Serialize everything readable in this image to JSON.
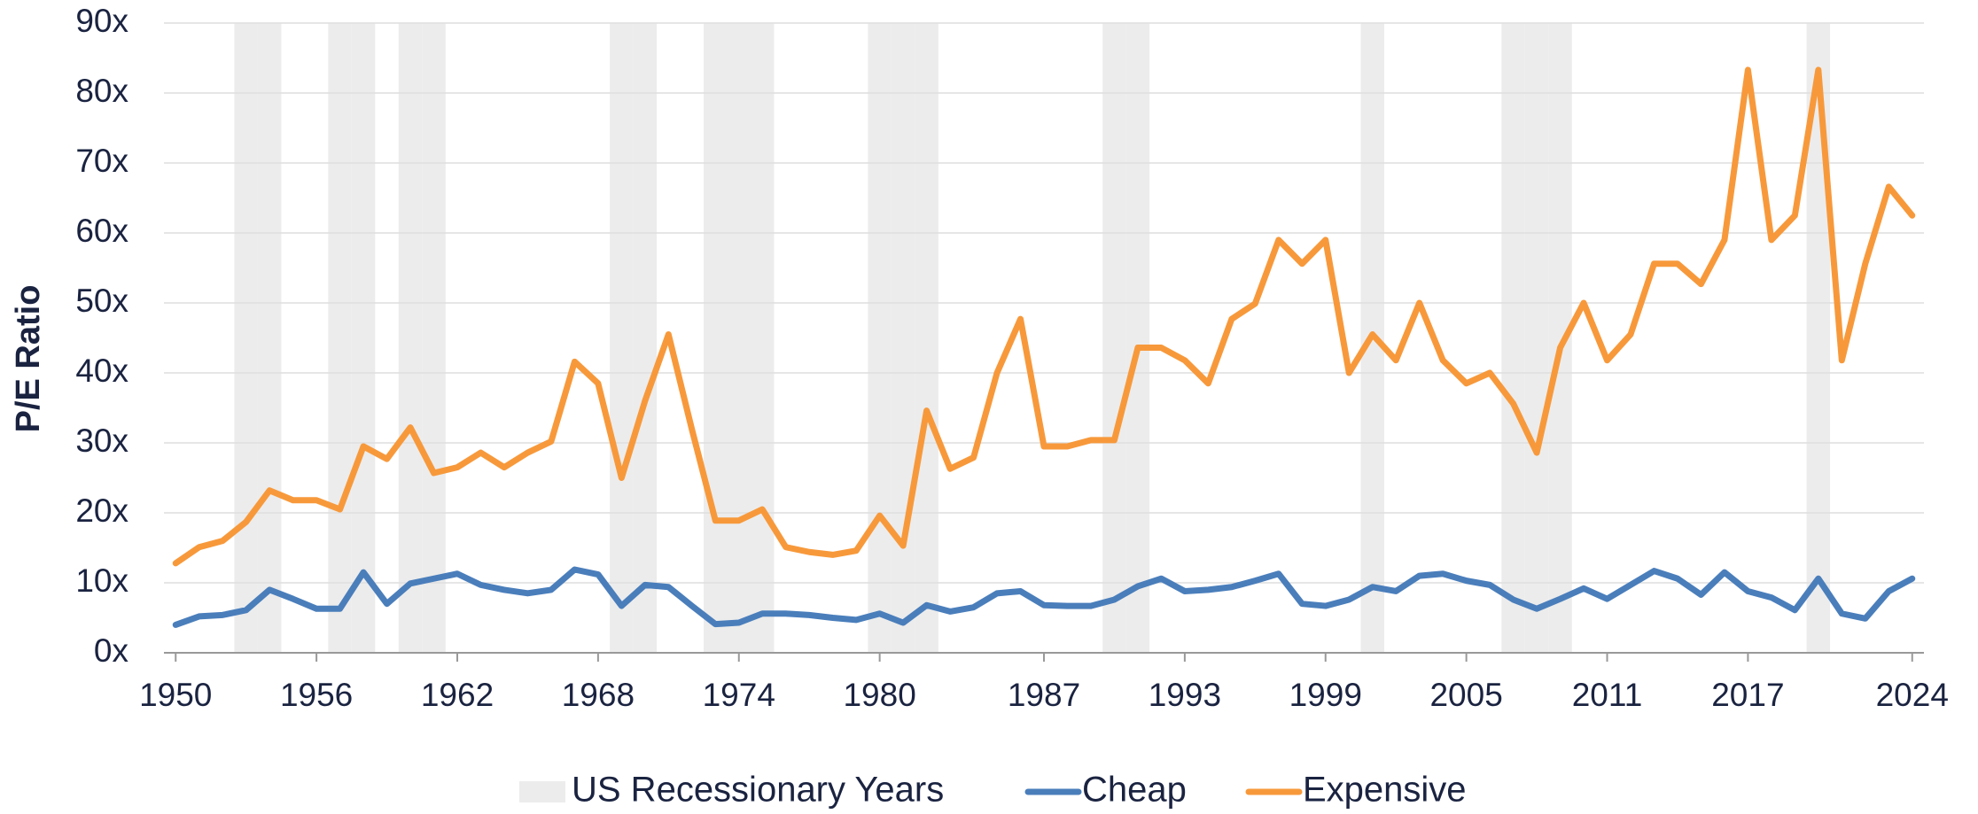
{
  "chart_data": {
    "type": "line",
    "ylabel": "P/E Ratio",
    "x": [
      1950,
      1951,
      1952,
      1953,
      1954,
      1955,
      1956,
      1957,
      1958,
      1959,
      1960,
      1961,
      1962,
      1963,
      1964,
      1965,
      1966,
      1967,
      1968,
      1969,
      1970,
      1971,
      1972,
      1973,
      1974,
      1975,
      1976,
      1977,
      1978,
      1979,
      1980,
      1981,
      1982,
      1983,
      1984,
      1985,
      1986,
      1987,
      1988,
      1989,
      1990,
      1991,
      1992,
      1993,
      1994,
      1995,
      1996,
      1997,
      1998,
      1999,
      2000,
      2001,
      2002,
      2003,
      2004,
      2005,
      2006,
      2007,
      2008,
      2009,
      2010,
      2011,
      2012,
      2013,
      2014,
      2015,
      2016,
      2017,
      2018,
      2019,
      2020,
      2021,
      2022,
      2023,
      2024
    ],
    "series": [
      {
        "name": "Cheap",
        "color": "#4a7ebb",
        "values": [
          4,
          5.2,
          5.4,
          6.1,
          9,
          7.7,
          6.3,
          6.3,
          11.5,
          7,
          9.9,
          10.6,
          11.3,
          9.7,
          9,
          8.5,
          9,
          11.9,
          11.2,
          6.7,
          9.7,
          9.4,
          6.7,
          4.1,
          4.3,
          5.6,
          5.6,
          5.4,
          5,
          4.7,
          5.6,
          4.3,
          6.8,
          5.9,
          6.5,
          8.5,
          8.8,
          6.8,
          6.7,
          6.7,
          7.6,
          9.5,
          10.6,
          8.8,
          9,
          9.4,
          10.3,
          11.3,
          7,
          6.7,
          7.6,
          9.4,
          8.8,
          11,
          11.3,
          10.3,
          9.7,
          7.6,
          6.3,
          7.7,
          9.2,
          7.7,
          9.7,
          11.7,
          10.6,
          8.3,
          11.5,
          8.8,
          7.9,
          6.1,
          10.6,
          5.6,
          4.9,
          8.8,
          10.6
        ]
      },
      {
        "name": "Expensive",
        "color": "#f7993b",
        "values": [
          12.8,
          15.1,
          16,
          18.7,
          23.2,
          21.8,
          21.8,
          20.5,
          29.5,
          27.7,
          32.2,
          25.7,
          26.5,
          28.6,
          26.5,
          28.6,
          30.2,
          41.6,
          38.5,
          25,
          36,
          45.5,
          31.9,
          18.9,
          18.9,
          20.5,
          15.1,
          14.4,
          14,
          14.6,
          19.6,
          15.3,
          34.6,
          26.3,
          27.9,
          40,
          47.7,
          29.5,
          29.5,
          30.4,
          30.4,
          43.6,
          43.6,
          41.8,
          38.5,
          47.7,
          49.9,
          59,
          55.6,
          59,
          40,
          45.5,
          41.8,
          50,
          41.8,
          38.5,
          40,
          35.6,
          28.6,
          43.6,
          50,
          41.8,
          45.5,
          55.6,
          55.6,
          52.7,
          59,
          83.3,
          59,
          62.5,
          83.3,
          41.8,
          55.6,
          66.6,
          62.5
        ]
      }
    ],
    "recessions": {
      "name": "US Recessionary Years",
      "color": "#ececec",
      "years": [
        1953,
        1954,
        1957,
        1958,
        1960,
        1961,
        1969,
        1970,
        1973,
        1974,
        1975,
        1980,
        1981,
        1982,
        1990,
        1991,
        2001,
        2007,
        2008,
        2009,
        2020
      ]
    },
    "xlim": [
      1949.5,
      2024.5
    ],
    "xticks": [
      1950,
      1956,
      1962,
      1968,
      1974,
      1980,
      1987,
      1993,
      1999,
      2005,
      2011,
      2017,
      2024
    ],
    "ylim": [
      0,
      90
    ],
    "yticks": [
      {
        "value": 0,
        "label": "0x"
      },
      {
        "value": 10,
        "label": "10x"
      },
      {
        "value": 20,
        "label": "20x"
      },
      {
        "value": 30,
        "label": "30x"
      },
      {
        "value": 40,
        "label": "40x"
      },
      {
        "value": 50,
        "label": "50x"
      },
      {
        "value": 60,
        "label": "60x"
      },
      {
        "value": 70,
        "label": "70x"
      },
      {
        "value": 80,
        "label": "80x"
      },
      {
        "value": 90,
        "label": "90x"
      }
    ],
    "grid": true,
    "legend": "bottom"
  }
}
